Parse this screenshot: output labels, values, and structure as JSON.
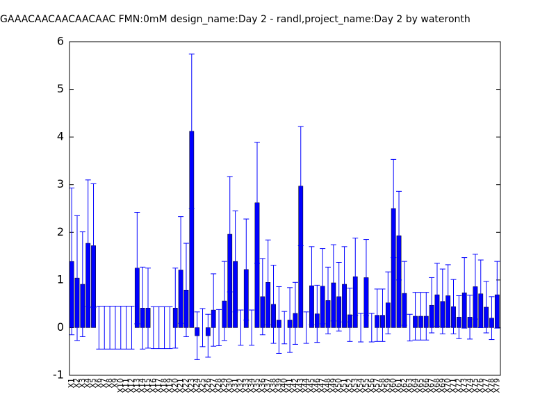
{
  "chart_data": {
    "type": "bar",
    "title": "GAAACAACAACAACAAC  FMN:0mM  design_name:Day 2 - randl,project_name:Day 2 by wateronth",
    "categories": [
      "X1",
      "X2",
      "X3",
      "X4",
      "X5",
      "X6",
      "X7",
      "X8",
      "X9",
      "X10",
      "X11",
      "X12",
      "X13",
      "X14",
      "X15",
      "X16",
      "X17",
      "X18",
      "X19",
      "X20",
      "X21",
      "X22",
      "X23",
      "X24",
      "X25",
      "X26",
      "X27",
      "X28",
      "X29",
      "X30",
      "X31",
      "X32",
      "X33",
      "X34",
      "X35",
      "X36",
      "X37",
      "X38",
      "X39",
      "X40",
      "X41",
      "X42",
      "X43",
      "X44",
      "X45",
      "X46",
      "X47",
      "X48",
      "X49",
      "X50",
      "X51",
      "X52",
      "X53",
      "X54",
      "X55",
      "X56",
      "X57",
      "X58",
      "X59",
      "X60",
      "X61",
      "X62",
      "X63",
      "X64",
      "X65",
      "X66",
      "X67",
      "X68",
      "X69",
      "X70",
      "X71",
      "X72",
      "X73",
      "X74",
      "X75",
      "X76",
      "X77",
      "X78",
      "X79"
    ],
    "values": [
      1.39,
      1.04,
      0.91,
      1.77,
      1.72,
      0,
      0,
      0,
      0,
      0,
      0,
      0,
      1.25,
      0.41,
      0.41,
      0,
      0,
      0,
      0,
      0.41,
      1.21,
      0.79,
      4.12,
      -0.17,
      0,
      -0.17,
      0.37,
      0,
      0.56,
      1.96,
      1.39,
      0,
      1.22,
      0,
      2.62,
      0.65,
      0.95,
      0.49,
      0.16,
      0,
      0.16,
      0.3,
      2.97,
      0,
      0.88,
      0.29,
      0.87,
      0.57,
      0.94,
      0.65,
      0.91,
      0.27,
      1.07,
      0,
      1.05,
      0,
      0.26,
      0.26,
      0.52,
      2.5,
      1.93,
      0.72,
      0,
      0.24,
      0.24,
      0.24,
      0.47,
      0.69,
      0.55,
      0.67,
      0.44,
      0.22,
      0.73,
      0.22,
      0.86,
      0.71,
      0.43,
      0.2,
      0.69
    ],
    "errors": [
      1.54,
      1.31,
      1.1,
      1.33,
      1.3,
      0.45,
      0.45,
      0.45,
      0.45,
      0.45,
      0.45,
      0.45,
      1.17,
      0.86,
      0.84,
      0.44,
      0.44,
      0.44,
      0.44,
      0.84,
      1.12,
      0.98,
      1.62,
      0.5,
      0.4,
      0.45,
      0.76,
      0.38,
      0.83,
      1.21,
      1.06,
      0.37,
      1.06,
      0.37,
      1.27,
      0.8,
      0.89,
      0.82,
      0.7,
      0.34,
      0.68,
      0.65,
      1.25,
      0.33,
      0.82,
      0.6,
      0.79,
      0.7,
      0.8,
      0.72,
      0.79,
      0.56,
      0.81,
      0.3,
      0.8,
      0.3,
      0.55,
      0.55,
      0.65,
      1.03,
      0.93,
      0.67,
      0.28,
      0.5,
      0.5,
      0.5,
      0.58,
      0.66,
      0.68,
      0.65,
      0.57,
      0.45,
      0.74,
      0.46,
      0.68,
      0.71,
      0.54,
      0.45,
      0.7
    ],
    "color": "#0000ff",
    "ylim": [
      -1,
      6
    ],
    "yticks": [
      -1,
      0,
      1,
      2,
      3,
      4,
      5,
      6
    ],
    "grid": false
  }
}
